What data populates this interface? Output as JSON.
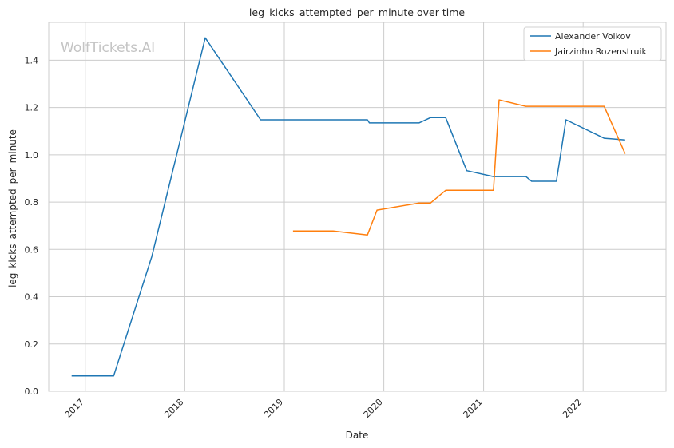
{
  "watermark": "WolfTickets.AI",
  "chart_data": {
    "type": "line",
    "title": "leg_kicks_attempted_per_minute over time",
    "xlabel": "Date",
    "ylabel": "leg_kicks_attempted_per_minute",
    "x_ticks": [
      "2017",
      "2018",
      "2019",
      "2020",
      "2021",
      "2022"
    ],
    "y_ticks": [
      "0.0",
      "0.2",
      "0.4",
      "0.6",
      "0.8",
      "1.0",
      "1.2",
      "1.4"
    ],
    "xlim": [
      "2016-08-20",
      "2022-11-01"
    ],
    "ylim": [
      0,
      1.56
    ],
    "grid": true,
    "legend_position": "top-right",
    "series": [
      {
        "name": "Alexander Volkov",
        "color": "#1f77b4",
        "points": [
          [
            "2016-11-12",
            0.065
          ],
          [
            "2017-04-15",
            0.065
          ],
          [
            "2017-09-02",
            0.57
          ],
          [
            "2018-03-17",
            1.495
          ],
          [
            "2018-10-06",
            1.148
          ],
          [
            "2019-11-02",
            1.148
          ],
          [
            "2019-11-09",
            1.135
          ],
          [
            "2020-05-09",
            1.135
          ],
          [
            "2020-06-20",
            1.157
          ],
          [
            "2020-08-15",
            1.157
          ],
          [
            "2020-10-31",
            0.933
          ],
          [
            "2021-02-06",
            0.908
          ],
          [
            "2021-06-05",
            0.908
          ],
          [
            "2021-06-26",
            0.888
          ],
          [
            "2021-09-25",
            0.888
          ],
          [
            "2021-10-30",
            1.148
          ],
          [
            "2022-03-19",
            1.07
          ],
          [
            "2022-06-04",
            1.063
          ]
        ]
      },
      {
        "name": "Jairzinho Rozenstruik",
        "color": "#ff7f0e",
        "points": [
          [
            "2019-02-02",
            0.678
          ],
          [
            "2019-06-29",
            0.678
          ],
          [
            "2019-11-02",
            0.661
          ],
          [
            "2019-12-07",
            0.766
          ],
          [
            "2020-05-09",
            0.796
          ],
          [
            "2020-06-20",
            0.796
          ],
          [
            "2020-08-15",
            0.85
          ],
          [
            "2021-02-06",
            0.85
          ],
          [
            "2021-02-27",
            1.232
          ],
          [
            "2021-06-05",
            1.205
          ],
          [
            "2022-03-19",
            1.205
          ],
          [
            "2022-06-04",
            1.005
          ]
        ]
      }
    ]
  }
}
